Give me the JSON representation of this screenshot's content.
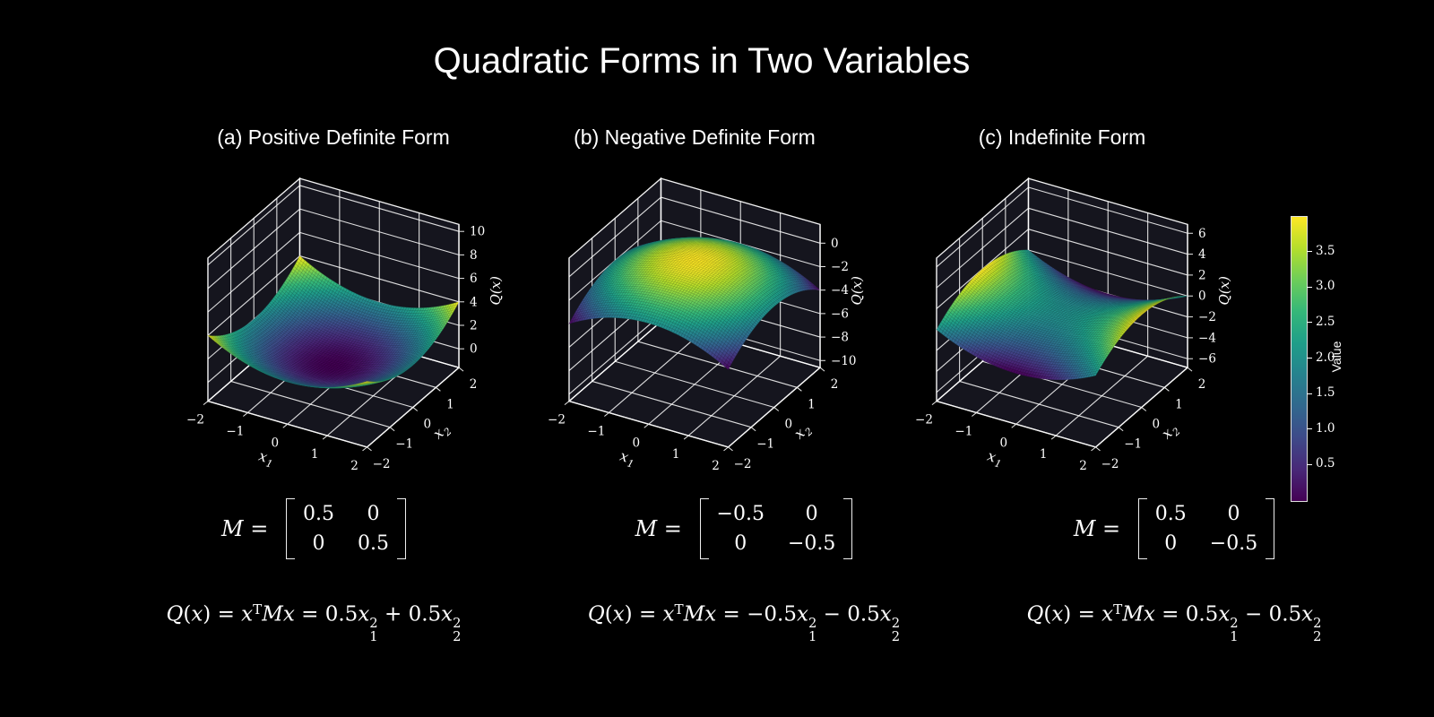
{
  "figure": {
    "title": "Quadratic Forms in Two Variables",
    "background": "#000000",
    "text_color": "#ffffff"
  },
  "style": {
    "pane_color": "#15151e",
    "grid_color": "#ffffff",
    "edge_color": "#f5f5f5"
  },
  "colormap": {
    "name": "viridis",
    "stops": [
      "#440154",
      "#482878",
      "#3e4a89",
      "#31688e",
      "#26828e",
      "#1f9e89",
      "#35b779",
      "#6dcd59",
      "#b4de2c",
      "#fde725"
    ]
  },
  "colorbar": {
    "label": "Value",
    "vmin": 0,
    "vmax": 4,
    "ticks": [
      0.5,
      1.0,
      1.5,
      2.0,
      2.5,
      3.0,
      3.5
    ]
  },
  "chart_data": [
    {
      "type": "surface3d",
      "panel": "a",
      "title": "(a) Positive Definite Form",
      "M": [
        [
          0.5,
          0
        ],
        [
          0,
          0.5
        ]
      ],
      "matrix_display": {
        "prefix": [
          {
            "t": "v",
            "x": "M"
          },
          {
            "t": "n",
            "x": " = "
          }
        ],
        "rows": [
          [
            "0.5",
            "0"
          ],
          [
            "0",
            "0.5"
          ]
        ]
      },
      "equation": [
        {
          "t": "v",
          "x": "Q"
        },
        {
          "t": "n",
          "x": "("
        },
        {
          "t": "v",
          "x": "x"
        },
        {
          "t": "n",
          "x": ") = "
        },
        {
          "t": "v",
          "x": "x"
        },
        {
          "t": "sup",
          "x": "T"
        },
        {
          "t": "v",
          "x": "M"
        },
        {
          "t": "v",
          "x": "x"
        },
        {
          "t": "n",
          "x": " = 0.5"
        },
        {
          "t": "v",
          "x": "x"
        },
        {
          "t": "ss",
          "sup": "2",
          "sub": "1"
        },
        {
          "t": "n",
          "x": " + 0.5"
        },
        {
          "t": "v",
          "x": "x"
        },
        {
          "t": "ss",
          "sup": "2",
          "sub": "2"
        }
      ],
      "x_range": [
        -2,
        2
      ],
      "y_range": [
        -2,
        2
      ],
      "zlim": [
        -1.6,
        10.6
      ],
      "x_ticks": [
        -2,
        -1,
        0,
        1,
        2
      ],
      "y_ticks": [
        -2,
        -1,
        0,
        1,
        2
      ],
      "z_ticks": [
        0,
        2,
        4,
        6,
        8,
        10
      ],
      "xlabel": {
        "base": "x",
        "sub": "1"
      },
      "ylabel": {
        "base": "x",
        "sub": "2"
      },
      "zlabel": "Q(x)",
      "view": {
        "elev": 30,
        "azim": -60
      }
    },
    {
      "type": "surface3d",
      "panel": "b",
      "title": "(b) Negative Definite Form",
      "M": [
        [
          -0.5,
          0
        ],
        [
          0,
          -0.5
        ]
      ],
      "matrix_display": {
        "prefix": [
          {
            "t": "v",
            "x": "M"
          },
          {
            "t": "n",
            "x": " = "
          }
        ],
        "rows": [
          [
            "−0.5",
            "0"
          ],
          [
            "0",
            "−0.5"
          ]
        ]
      },
      "equation": [
        {
          "t": "v",
          "x": "Q"
        },
        {
          "t": "n",
          "x": "("
        },
        {
          "t": "v",
          "x": "x"
        },
        {
          "t": "n",
          "x": ") = "
        },
        {
          "t": "v",
          "x": "x"
        },
        {
          "t": "sup",
          "x": "T"
        },
        {
          "t": "v",
          "x": "M"
        },
        {
          "t": "v",
          "x": "x"
        },
        {
          "t": "n",
          "x": " = −0.5"
        },
        {
          "t": "v",
          "x": "x"
        },
        {
          "t": "ss",
          "sup": "2",
          "sub": "1"
        },
        {
          "t": "n",
          "x": " − 0.5"
        },
        {
          "t": "v",
          "x": "x"
        },
        {
          "t": "ss",
          "sup": "2",
          "sub": "2"
        }
      ],
      "x_range": [
        -2,
        2
      ],
      "y_range": [
        -2,
        2
      ],
      "zlim": [
        -10.6,
        1.6
      ],
      "x_ticks": [
        -2,
        -1,
        0,
        1,
        2
      ],
      "y_ticks": [
        -2,
        -1,
        0,
        1,
        2
      ],
      "z_ticks": [
        0,
        -2,
        -4,
        -6,
        -8,
        -10
      ],
      "xlabel": {
        "base": "x",
        "sub": "1"
      },
      "ylabel": {
        "base": "x",
        "sub": "2"
      },
      "zlabel": "Q(x)",
      "view": {
        "elev": 30,
        "azim": -60
      }
    },
    {
      "type": "surface3d",
      "panel": "c",
      "title": "(c) Indefinite Form",
      "M": [
        [
          0.5,
          0
        ],
        [
          0,
          -0.5
        ]
      ],
      "matrix_display": {
        "prefix": [
          {
            "t": "v",
            "x": "M"
          },
          {
            "t": "n",
            "x": " = "
          }
        ],
        "rows": [
          [
            "0.5",
            "0"
          ],
          [
            "0",
            "−0.5"
          ]
        ]
      },
      "equation": [
        {
          "t": "v",
          "x": "Q"
        },
        {
          "t": "n",
          "x": "("
        },
        {
          "t": "v",
          "x": "x"
        },
        {
          "t": "n",
          "x": ") = "
        },
        {
          "t": "v",
          "x": "x"
        },
        {
          "t": "sup",
          "x": "T"
        },
        {
          "t": "v",
          "x": "M"
        },
        {
          "t": "v",
          "x": "x"
        },
        {
          "t": "n",
          "x": " = 0.5"
        },
        {
          "t": "v",
          "x": "x"
        },
        {
          "t": "ss",
          "sup": "2",
          "sub": "1"
        },
        {
          "t": "n",
          "x": " − 0.5"
        },
        {
          "t": "v",
          "x": "x"
        },
        {
          "t": "ss",
          "sup": "2",
          "sub": "2"
        }
      ],
      "x_range": [
        -2,
        2
      ],
      "y_range": [
        -2,
        2
      ],
      "zlim": [
        -6.85,
        6.85
      ],
      "x_ticks": [
        -2,
        -1,
        0,
        1,
        2
      ],
      "y_ticks": [
        -2,
        -1,
        0,
        1,
        2
      ],
      "z_ticks": [
        6,
        4,
        2,
        0,
        -2,
        -4,
        -6
      ],
      "xlabel": {
        "base": "x",
        "sub": "1"
      },
      "ylabel": {
        "base": "x",
        "sub": "2"
      },
      "zlabel": "Q(x)",
      "view": {
        "elev": 30,
        "azim": -60
      }
    }
  ]
}
